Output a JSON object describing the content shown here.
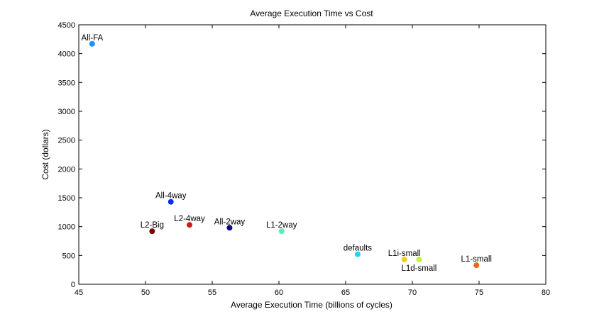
{
  "chart_data": {
    "type": "scatter",
    "title": "Average Execution Time vs Cost",
    "xlabel": "Average Execution Time (billions of cycles)",
    "ylabel": "Cost (dollars)",
    "xlim": [
      45,
      80
    ],
    "ylim": [
      0,
      4500
    ],
    "x_ticks": [
      45,
      50,
      55,
      60,
      65,
      70,
      75,
      80
    ],
    "y_ticks": [
      0,
      500,
      1000,
      1500,
      2000,
      2500,
      3000,
      3500,
      4000,
      4500
    ],
    "grid": false,
    "legend": "none",
    "points": [
      {
        "label": "All-FA",
        "x": 46.0,
        "y": 4170,
        "color": "#1e8fff",
        "label_pos": "above"
      },
      {
        "label": "All-4way",
        "x": 51.9,
        "y": 1430,
        "color": "#0a2cf0",
        "label_pos": "above"
      },
      {
        "label": "L2-Big",
        "x": 50.5,
        "y": 920,
        "color": "#800000",
        "label_pos": "above"
      },
      {
        "label": "L2-4way",
        "x": 53.3,
        "y": 1030,
        "color": "#d81818",
        "label_pos": "above"
      },
      {
        "label": "All-2way",
        "x": 56.3,
        "y": 980,
        "color": "#0a0a80",
        "label_pos": "above"
      },
      {
        "label": "L1-2way",
        "x": 60.2,
        "y": 920,
        "color": "#5cf0b0",
        "label_pos": "above"
      },
      {
        "label": "defaults",
        "x": 65.9,
        "y": 520,
        "color": "#22d4f4",
        "label_pos": "above"
      },
      {
        "label": "L1i-small",
        "x": 69.4,
        "y": 430,
        "color": "#f0d01a",
        "label_pos": "above"
      },
      {
        "label": "L1d-small",
        "x": 70.5,
        "y": 430,
        "color": "#c8f040",
        "label_pos": "below"
      },
      {
        "label": "L1-small",
        "x": 74.8,
        "y": 330,
        "color": "#f06414",
        "label_pos": "above"
      }
    ]
  }
}
